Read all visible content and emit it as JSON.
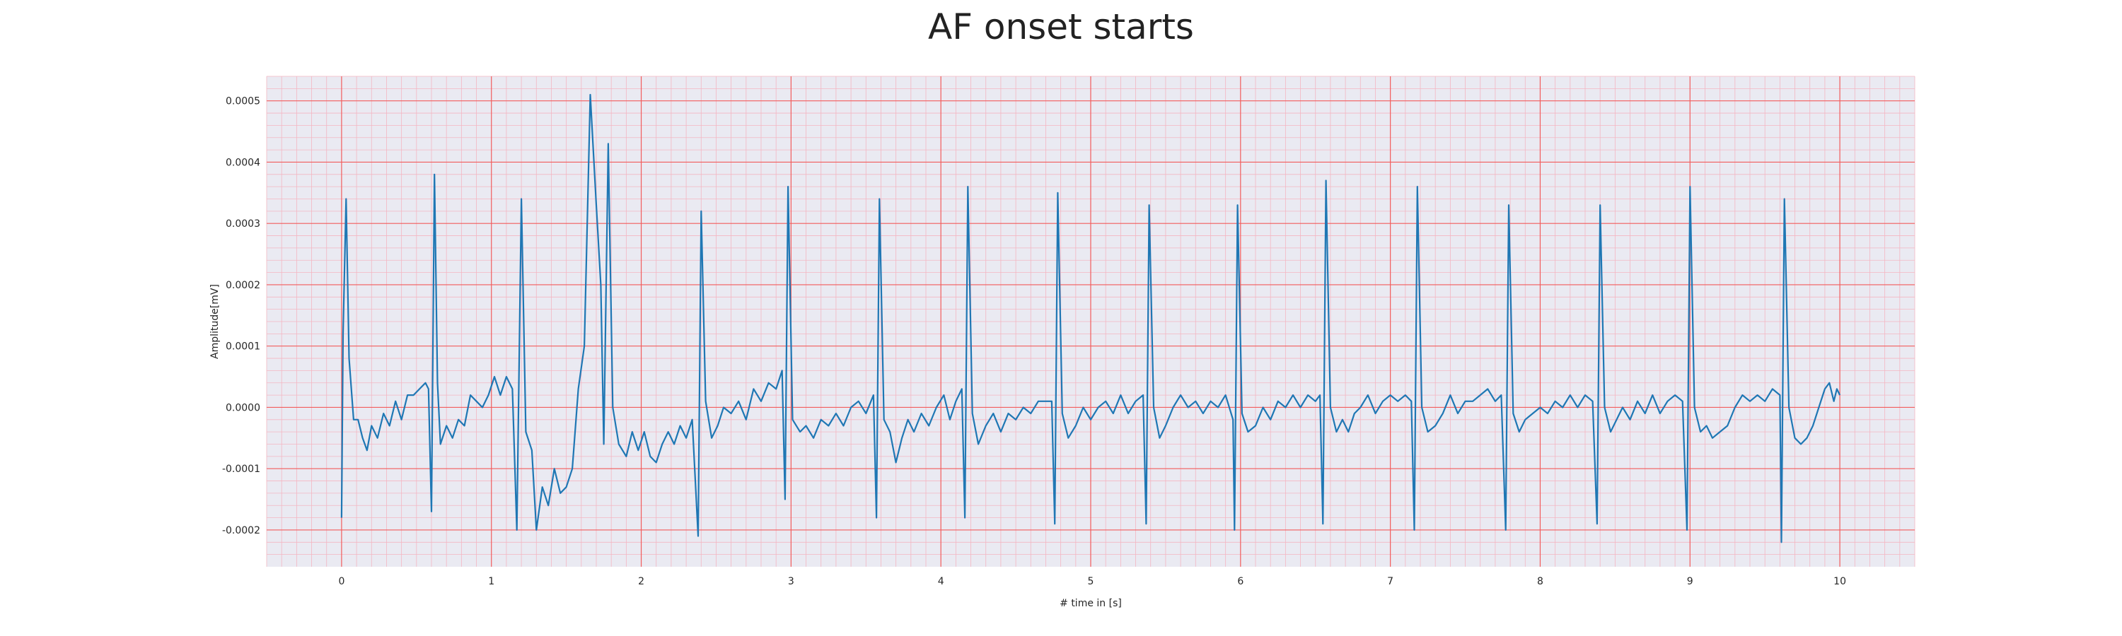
{
  "chart_data": {
    "type": "line",
    "title": "AF onset starts",
    "xlabel": "# time in [s]",
    "ylabel": "Amplitude[mV]",
    "xlim": [
      -0.5,
      10.5
    ],
    "ylim": [
      -0.00026,
      0.00054
    ],
    "x_ticks": [
      0,
      1,
      2,
      3,
      4,
      5,
      6,
      7,
      8,
      9,
      10
    ],
    "x_tick_labels": [
      "0",
      "1",
      "2",
      "3",
      "4",
      "5",
      "6",
      "7",
      "8",
      "9",
      "10"
    ],
    "y_ticks": [
      -0.0002,
      -0.0001,
      0.0,
      0.0001,
      0.0002,
      0.0003,
      0.0004,
      0.0005
    ],
    "y_tick_labels": [
      "-0.0002",
      "-0.0001",
      "0.0000",
      "0.0001",
      "0.0002",
      "0.0003",
      "0.0004",
      "0.0005"
    ],
    "grid": "on (major red, minor pink)",
    "legend": "none",
    "colors": {
      "line": "#1f77b4",
      "plot_background": "#eaeaf2",
      "major_grid": "#f25c5c",
      "minor_grid": "#f4b6c2"
    },
    "series": [
      {
        "color": "#1f77b4",
        "points": [
          [
            0.0,
            -0.00018
          ],
          [
            0.01,
            0.00012
          ],
          [
            0.03,
            0.00034
          ],
          [
            0.05,
            8e-05
          ],
          [
            0.08,
            -2e-05
          ],
          [
            0.11,
            -2e-05
          ],
          [
            0.14,
            -5e-05
          ],
          [
            0.17,
            -7e-05
          ],
          [
            0.2,
            -3e-05
          ],
          [
            0.24,
            -5e-05
          ],
          [
            0.28,
            -1e-05
          ],
          [
            0.32,
            -3e-05
          ],
          [
            0.36,
            1e-05
          ],
          [
            0.4,
            -2e-05
          ],
          [
            0.44,
            2e-05
          ],
          [
            0.48,
            2e-05
          ],
          [
            0.52,
            3e-05
          ],
          [
            0.56,
            4e-05
          ],
          [
            0.58,
            3e-05
          ],
          [
            0.6,
            -0.00017
          ],
          [
            0.62,
            0.00038
          ],
          [
            0.64,
            4e-05
          ],
          [
            0.66,
            -6e-05
          ],
          [
            0.7,
            -3e-05
          ],
          [
            0.74,
            -5e-05
          ],
          [
            0.78,
            -2e-05
          ],
          [
            0.82,
            -3e-05
          ],
          [
            0.86,
            2e-05
          ],
          [
            0.9,
            1e-05
          ],
          [
            0.94,
            0.0
          ],
          [
            0.98,
            2e-05
          ],
          [
            1.02,
            5e-05
          ],
          [
            1.06,
            2e-05
          ],
          [
            1.1,
            5e-05
          ],
          [
            1.14,
            3e-05
          ],
          [
            1.17,
            -0.0002
          ],
          [
            1.2,
            0.00034
          ],
          [
            1.23,
            -4e-05
          ],
          [
            1.27,
            -7e-05
          ],
          [
            1.3,
            -0.0002
          ],
          [
            1.34,
            -0.00013
          ],
          [
            1.38,
            -0.00016
          ],
          [
            1.42,
            -0.0001
          ],
          [
            1.46,
            -0.00014
          ],
          [
            1.5,
            -0.00013
          ],
          [
            1.54,
            -0.0001
          ],
          [
            1.58,
            3e-05
          ],
          [
            1.62,
            0.0001
          ],
          [
            1.66,
            0.00051
          ],
          [
            1.7,
            0.00033
          ],
          [
            1.73,
            0.0002
          ],
          [
            1.75,
            -6e-05
          ],
          [
            1.78,
            0.00043
          ],
          [
            1.81,
            0.0
          ],
          [
            1.85,
            -6e-05
          ],
          [
            1.9,
            -8e-05
          ],
          [
            1.94,
            -4e-05
          ],
          [
            1.98,
            -7e-05
          ],
          [
            2.02,
            -4e-05
          ],
          [
            2.06,
            -8e-05
          ],
          [
            2.1,
            -9e-05
          ],
          [
            2.14,
            -6e-05
          ],
          [
            2.18,
            -4e-05
          ],
          [
            2.22,
            -6e-05
          ],
          [
            2.26,
            -3e-05
          ],
          [
            2.3,
            -5e-05
          ],
          [
            2.34,
            -2e-05
          ],
          [
            2.38,
            -0.00021
          ],
          [
            2.4,
            0.00032
          ],
          [
            2.43,
            1e-05
          ],
          [
            2.47,
            -5e-05
          ],
          [
            2.51,
            -3e-05
          ],
          [
            2.55,
            0.0
          ],
          [
            2.6,
            -1e-05
          ],
          [
            2.65,
            1e-05
          ],
          [
            2.7,
            -2e-05
          ],
          [
            2.75,
            3e-05
          ],
          [
            2.8,
            1e-05
          ],
          [
            2.85,
            4e-05
          ],
          [
            2.9,
            3e-05
          ],
          [
            2.94,
            6e-05
          ],
          [
            2.96,
            -0.00015
          ],
          [
            2.98,
            0.00036
          ],
          [
            3.01,
            -2e-05
          ],
          [
            3.06,
            -4e-05
          ],
          [
            3.1,
            -3e-05
          ],
          [
            3.15,
            -5e-05
          ],
          [
            3.2,
            -2e-05
          ],
          [
            3.25,
            -3e-05
          ],
          [
            3.3,
            -1e-05
          ],
          [
            3.35,
            -3e-05
          ],
          [
            3.4,
            0.0
          ],
          [
            3.45,
            1e-05
          ],
          [
            3.5,
            -1e-05
          ],
          [
            3.55,
            2e-05
          ],
          [
            3.57,
            -0.00018
          ],
          [
            3.59,
            0.00034
          ],
          [
            3.62,
            -2e-05
          ],
          [
            3.66,
            -4e-05
          ],
          [
            3.7,
            -9e-05
          ],
          [
            3.74,
            -5e-05
          ],
          [
            3.78,
            -2e-05
          ],
          [
            3.82,
            -4e-05
          ],
          [
            3.87,
            -1e-05
          ],
          [
            3.92,
            -3e-05
          ],
          [
            3.97,
            0.0
          ],
          [
            4.02,
            2e-05
          ],
          [
            4.06,
            -2e-05
          ],
          [
            4.1,
            1e-05
          ],
          [
            4.14,
            3e-05
          ],
          [
            4.16,
            -0.00018
          ],
          [
            4.18,
            0.00036
          ],
          [
            4.21,
            -1e-05
          ],
          [
            4.25,
            -6e-05
          ],
          [
            4.3,
            -3e-05
          ],
          [
            4.35,
            -1e-05
          ],
          [
            4.4,
            -4e-05
          ],
          [
            4.45,
            -1e-05
          ],
          [
            4.5,
            -2e-05
          ],
          [
            4.55,
            0.0
          ],
          [
            4.6,
            -1e-05
          ],
          [
            4.65,
            1e-05
          ],
          [
            4.7,
            1e-05
          ],
          [
            4.74,
            1e-05
          ],
          [
            4.76,
            -0.00019
          ],
          [
            4.78,
            0.00035
          ],
          [
            4.81,
            -1e-05
          ],
          [
            4.85,
            -5e-05
          ],
          [
            4.9,
            -3e-05
          ],
          [
            4.95,
            0.0
          ],
          [
            5.0,
            -2e-05
          ],
          [
            5.05,
            0.0
          ],
          [
            5.1,
            1e-05
          ],
          [
            5.15,
            -1e-05
          ],
          [
            5.2,
            2e-05
          ],
          [
            5.25,
            -1e-05
          ],
          [
            5.3,
            1e-05
          ],
          [
            5.35,
            2e-05
          ],
          [
            5.37,
            -0.00019
          ],
          [
            5.39,
            0.00033
          ],
          [
            5.42,
            0.0
          ],
          [
            5.46,
            -5e-05
          ],
          [
            5.5,
            -3e-05
          ],
          [
            5.55,
            0.0
          ],
          [
            5.6,
            2e-05
          ],
          [
            5.65,
            0.0
          ],
          [
            5.7,
            1e-05
          ],
          [
            5.75,
            -1e-05
          ],
          [
            5.8,
            1e-05
          ],
          [
            5.85,
            0.0
          ],
          [
            5.9,
            2e-05
          ],
          [
            5.95,
            -2e-05
          ],
          [
            5.96,
            -0.0002
          ],
          [
            5.98,
            0.00033
          ],
          [
            6.01,
            -1e-05
          ],
          [
            6.05,
            -4e-05
          ],
          [
            6.1,
            -3e-05
          ],
          [
            6.15,
            0.0
          ],
          [
            6.2,
            -2e-05
          ],
          [
            6.25,
            1e-05
          ],
          [
            6.3,
            0.0
          ],
          [
            6.35,
            2e-05
          ],
          [
            6.4,
            0.0
          ],
          [
            6.45,
            2e-05
          ],
          [
            6.5,
            1e-05
          ],
          [
            6.53,
            2e-05
          ],
          [
            6.55,
            -0.00019
          ],
          [
            6.57,
            0.00037
          ],
          [
            6.6,
            0.0
          ],
          [
            6.64,
            -4e-05
          ],
          [
            6.68,
            -2e-05
          ],
          [
            6.72,
            -4e-05
          ],
          [
            6.76,
            -1e-05
          ],
          [
            6.8,
            0.0
          ],
          [
            6.85,
            2e-05
          ],
          [
            6.9,
            -1e-05
          ],
          [
            6.95,
            1e-05
          ],
          [
            7.0,
            2e-05
          ],
          [
            7.05,
            1e-05
          ],
          [
            7.1,
            2e-05
          ],
          [
            7.14,
            1e-05
          ],
          [
            7.16,
            -0.0002
          ],
          [
            7.18,
            0.00036
          ],
          [
            7.21,
            0.0
          ],
          [
            7.25,
            -4e-05
          ],
          [
            7.3,
            -3e-05
          ],
          [
            7.35,
            -1e-05
          ],
          [
            7.4,
            2e-05
          ],
          [
            7.45,
            -1e-05
          ],
          [
            7.5,
            1e-05
          ],
          [
            7.55,
            1e-05
          ],
          [
            7.6,
            2e-05
          ],
          [
            7.65,
            3e-05
          ],
          [
            7.7,
            1e-05
          ],
          [
            7.74,
            2e-05
          ],
          [
            7.77,
            -0.0002
          ],
          [
            7.79,
            0.00033
          ],
          [
            7.82,
            -1e-05
          ],
          [
            7.86,
            -4e-05
          ],
          [
            7.9,
            -2e-05
          ],
          [
            7.95,
            -1e-05
          ],
          [
            8.0,
            0.0
          ],
          [
            8.05,
            -1e-05
          ],
          [
            8.1,
            1e-05
          ],
          [
            8.15,
            0.0
          ],
          [
            8.2,
            2e-05
          ],
          [
            8.25,
            0.0
          ],
          [
            8.3,
            2e-05
          ],
          [
            8.35,
            1e-05
          ],
          [
            8.38,
            -0.00019
          ],
          [
            8.4,
            0.00033
          ],
          [
            8.43,
            0.0
          ],
          [
            8.47,
            -4e-05
          ],
          [
            8.51,
            -2e-05
          ],
          [
            8.55,
            0.0
          ],
          [
            8.6,
            -2e-05
          ],
          [
            8.65,
            1e-05
          ],
          [
            8.7,
            -1e-05
          ],
          [
            8.75,
            2e-05
          ],
          [
            8.8,
            -1e-05
          ],
          [
            8.85,
            1e-05
          ],
          [
            8.9,
            2e-05
          ],
          [
            8.95,
            1e-05
          ],
          [
            8.98,
            -0.0002
          ],
          [
            9.0,
            0.00036
          ],
          [
            9.03,
            0.0
          ],
          [
            9.07,
            -4e-05
          ],
          [
            9.11,
            -3e-05
          ],
          [
            9.15,
            -5e-05
          ],
          [
            9.2,
            -4e-05
          ],
          [
            9.25,
            -3e-05
          ],
          [
            9.3,
            0.0
          ],
          [
            9.35,
            2e-05
          ],
          [
            9.4,
            1e-05
          ],
          [
            9.45,
            2e-05
          ],
          [
            9.5,
            1e-05
          ],
          [
            9.55,
            3e-05
          ],
          [
            9.6,
            2e-05
          ],
          [
            9.61,
            -0.00022
          ],
          [
            9.63,
            0.00034
          ],
          [
            9.66,
            0.0
          ],
          [
            9.7,
            -5e-05
          ],
          [
            9.74,
            -6e-05
          ],
          [
            9.78,
            -5e-05
          ],
          [
            9.82,
            -3e-05
          ],
          [
            9.86,
            0.0
          ],
          [
            9.9,
            3e-05
          ],
          [
            9.93,
            4e-05
          ],
          [
            9.96,
            1e-05
          ],
          [
            9.98,
            3e-05
          ],
          [
            10.0,
            2e-05
          ]
        ]
      }
    ]
  }
}
